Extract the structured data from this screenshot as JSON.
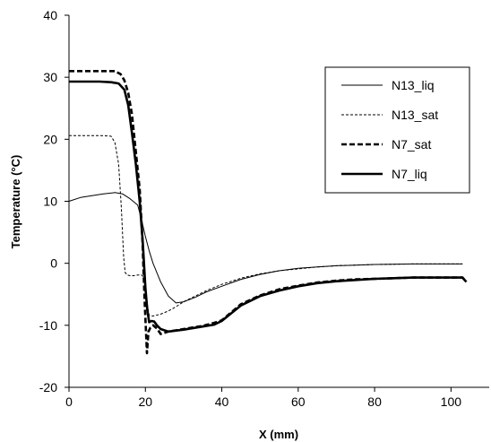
{
  "chart_data": {
    "type": "line",
    "title": "",
    "xlabel": "X (mm)",
    "ylabel": "Temperature (°C)",
    "xlim": [
      0,
      110
    ],
    "ylim": [
      -20,
      40
    ],
    "xticks": [
      0,
      20,
      40,
      60,
      80,
      100
    ],
    "yticks": [
      -20,
      -10,
      0,
      10,
      20,
      30,
      40
    ],
    "grid": false,
    "legend_position": "top-right",
    "series": [
      {
        "name": "N13_liq",
        "style": "thin-solid",
        "x": [
          0,
          3,
          6,
          9,
          12,
          14,
          16,
          18,
          19,
          20,
          21,
          22,
          24,
          26,
          28,
          30,
          33,
          36,
          40,
          45,
          50,
          55,
          60,
          65,
          70,
          75,
          80,
          85,
          90,
          95,
          100,
          103
        ],
        "y": [
          10,
          10.6,
          10.9,
          11.2,
          11.4,
          11.2,
          10.4,
          9.4,
          7,
          4.3,
          2,
          0,
          -3,
          -5.3,
          -6.4,
          -6.2,
          -5.5,
          -4.6,
          -3.7,
          -2.6,
          -1.8,
          -1.2,
          -0.8,
          -0.6,
          -0.4,
          -0.3,
          -0.2,
          -0.15,
          -0.1,
          -0.1,
          -0.1,
          -0.1
        ]
      },
      {
        "name": "N13_sat",
        "style": "thin-dashed",
        "x": [
          0,
          4,
          8,
          11,
          12,
          13,
          13.7,
          14.3,
          14.7,
          15.3,
          16,
          17,
          18,
          19,
          19.7,
          20.3,
          21,
          22,
          24,
          26,
          28,
          30,
          33,
          36,
          40,
          45,
          50,
          55,
          60,
          65,
          70,
          75,
          80,
          85,
          90,
          95,
          100,
          103
        ],
        "y": [
          20.6,
          20.6,
          20.6,
          20.5,
          19.5,
          16,
          9,
          1,
          -1.5,
          -1.9,
          -2,
          -2,
          -1.9,
          -1.9,
          -2.3,
          -6,
          -8.4,
          -8.5,
          -8.2,
          -7.7,
          -7,
          -6.2,
          -5.3,
          -4.4,
          -3.4,
          -2.4,
          -1.7,
          -1.2,
          -0.9,
          -0.6,
          -0.4,
          -0.3,
          -0.2,
          -0.15,
          -0.1,
          -0.1,
          -0.1,
          -0.1
        ]
      },
      {
        "name": "N7_sat",
        "style": "thick-dashed",
        "x": [
          0,
          4,
          8,
          12,
          13.5,
          14.5,
          15.5,
          16.5,
          17.5,
          18.5,
          19.2,
          19.8,
          20.4,
          20.8,
          21.3,
          22,
          23,
          24,
          26,
          30,
          35,
          38,
          40,
          45,
          50,
          55,
          60,
          65,
          70,
          75,
          80,
          85,
          90,
          95,
          100,
          103,
          104
        ],
        "y": [
          31,
          31,
          31,
          31,
          30.5,
          29.5,
          27.5,
          24,
          18,
          12,
          4,
          -6,
          -14.5,
          -11,
          -10.4,
          -10,
          -10.5,
          -11.4,
          -11,
          -10.6,
          -10.1,
          -9.6,
          -9.2,
          -6.6,
          -5.2,
          -4.2,
          -3.6,
          -3.1,
          -2.8,
          -2.6,
          -2.5,
          -2.4,
          -2.3,
          -2.3,
          -2.3,
          -2.3,
          -3
        ]
      },
      {
        "name": "N7_liq",
        "style": "thick-solid",
        "x": [
          0,
          4,
          8,
          11,
          13,
          14.5,
          15.5,
          16.5,
          17.5,
          18.5,
          19.3,
          20,
          20.5,
          21,
          21.6,
          22.3,
          23,
          24,
          26,
          30,
          35,
          38,
          40,
          45,
          50,
          55,
          60,
          65,
          70,
          75,
          80,
          85,
          90,
          95,
          100,
          103,
          104
        ],
        "y": [
          29.3,
          29.3,
          29.3,
          29.2,
          29,
          28,
          25.5,
          21,
          16,
          10,
          3.5,
          -4,
          -7.5,
          -9.5,
          -9.3,
          -9.4,
          -10,
          -10.6,
          -11,
          -10.7,
          -10.2,
          -9.9,
          -9.3,
          -6.8,
          -5.3,
          -4.4,
          -3.7,
          -3.2,
          -2.9,
          -2.7,
          -2.5,
          -2.4,
          -2.3,
          -2.3,
          -2.3,
          -2.3,
          -3
        ]
      }
    ]
  }
}
